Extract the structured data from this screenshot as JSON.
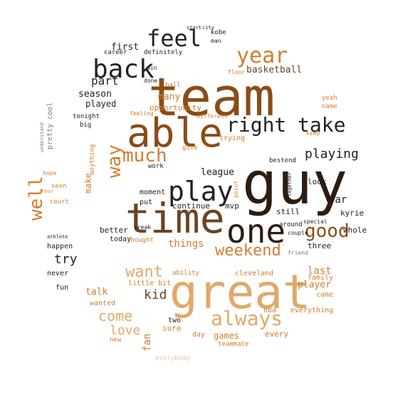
{
  "palette": {
    "dark": "#2d1c10",
    "brown": "#6b4424",
    "rust": "#8a4c17",
    "orange": "#d27d2d",
    "tan": "#e0a96a",
    "sand": "#ecc79e",
    "pale": "#f0d9bd",
    "ink": "#222222",
    "gray": "#7a7a7a"
  },
  "words": [
    {
      "text": "guy",
      "color": "dark"
    },
    {
      "text": "team",
      "color": "rust"
    },
    {
      "text": "great",
      "color": "tan"
    },
    {
      "text": "time",
      "color": "brown"
    },
    {
      "text": "able",
      "color": "rust"
    },
    {
      "text": "one",
      "color": "dark"
    },
    {
      "text": "play",
      "color": "ink"
    },
    {
      "text": "back",
      "color": "ink"
    },
    {
      "text": "feel",
      "color": "ink"
    },
    {
      "text": "year",
      "color": "orange"
    },
    {
      "text": "right",
      "color": "ink"
    },
    {
      "text": "take",
      "color": "ink"
    },
    {
      "text": "much",
      "color": "orange"
    },
    {
      "text": "way",
      "color": "orange"
    },
    {
      "text": "always",
      "color": "tan"
    },
    {
      "text": "good",
      "color": "rust"
    },
    {
      "text": "weekend",
      "color": "orange"
    },
    {
      "text": "want",
      "color": "tan"
    },
    {
      "text": "well",
      "color": "orange"
    },
    {
      "text": "playing",
      "color": "ink"
    },
    {
      "text": "come",
      "color": "tan"
    },
    {
      "text": "love",
      "color": "tan"
    },
    {
      "text": "kid",
      "color": "brown"
    },
    {
      "text": "try",
      "color": "ink"
    },
    {
      "text": "part",
      "color": "ink"
    },
    {
      "text": "first",
      "color": "ink"
    },
    {
      "text": "season",
      "color": "ink"
    },
    {
      "text": "played",
      "color": "ink"
    },
    {
      "text": "basketball",
      "color": "brown"
    },
    {
      "text": "many",
      "color": "orange"
    },
    {
      "text": "opportunity",
      "color": "orange"
    },
    {
      "text": "league",
      "color": "ink"
    },
    {
      "text": "things",
      "color": "orange"
    },
    {
      "text": "last",
      "color": "orange"
    },
    {
      "text": "player",
      "color": "orange"
    },
    {
      "text": "far",
      "color": "ink"
    },
    {
      "text": "look",
      "color": "ink"
    },
    {
      "text": "kyrie",
      "color": "ink"
    },
    {
      "text": "still",
      "color": "ink"
    },
    {
      "text": "whole",
      "color": "ink"
    },
    {
      "text": "three",
      "color": "ink"
    },
    {
      "text": "mvp",
      "color": "ink"
    },
    {
      "text": "continue",
      "color": "ink"
    },
    {
      "text": "moment",
      "color": "ink"
    },
    {
      "text": "put",
      "color": "ink"
    },
    {
      "text": "make",
      "color": "orange"
    },
    {
      "text": "better",
      "color": "ink"
    },
    {
      "text": "today",
      "color": "ink"
    },
    {
      "text": "happen",
      "color": "ink"
    },
    {
      "text": "never",
      "color": "ink"
    },
    {
      "text": "fun",
      "color": "ink"
    },
    {
      "text": "talk",
      "color": "orange"
    },
    {
      "text": "little bit",
      "color": "orange"
    },
    {
      "text": "wanted",
      "color": "orange"
    },
    {
      "text": "fan",
      "color": "orange"
    },
    {
      "text": "sure",
      "color": "orange"
    },
    {
      "text": "games",
      "color": "orange"
    },
    {
      "text": "every",
      "color": "orange"
    },
    {
      "text": "two",
      "color": "ink"
    },
    {
      "text": "day",
      "color": "orange"
    },
    {
      "text": "nba",
      "color": "orange"
    },
    {
      "text": "everything",
      "color": "orange"
    },
    {
      "text": "came",
      "color": "orange"
    },
    {
      "text": "family",
      "color": "orange"
    },
    {
      "text": "cleveland",
      "color": "orange"
    },
    {
      "text": "ability",
      "color": "orange"
    },
    {
      "text": "everybody",
      "color": "sand"
    },
    {
      "text": "teammate",
      "color": "orange"
    },
    {
      "text": "new",
      "color": "orange"
    },
    {
      "text": "definitely",
      "color": "ink"
    },
    {
      "text": "career",
      "color": "ink"
    },
    {
      "text": "kobe",
      "color": "ink"
    },
    {
      "text": "man",
      "color": "ink"
    },
    {
      "text": "win",
      "color": "ink"
    },
    {
      "text": "done",
      "color": "ink"
    },
    {
      "text": "tonight",
      "color": "ink"
    },
    {
      "text": "big",
      "color": "ink"
    },
    {
      "text": "pretty cool",
      "color": "gray"
    },
    {
      "text": "seen",
      "color": "orange"
    },
    {
      "text": "court",
      "color": "orange"
    },
    {
      "text": "athlete",
      "color": "ink"
    },
    {
      "text": "bestend",
      "color": "ink"
    },
    {
      "text": "yeah",
      "color": "orange"
    },
    {
      "text": "name",
      "color": "orange"
    },
    {
      "text": "special",
      "color": "ink"
    },
    {
      "text": "around",
      "color": "ink"
    },
    {
      "text": "couple",
      "color": "ink"
    },
    {
      "text": "ball",
      "color": "orange"
    },
    {
      "text": "trying",
      "color": "orange"
    },
    {
      "text": "give",
      "color": "orange"
    },
    {
      "text": "work",
      "color": "ink"
    },
    {
      "text": "thought",
      "color": "orange"
    },
    {
      "text": "feeling",
      "color": "orange"
    },
    {
      "text": "different",
      "color": "orange"
    },
    {
      "text": "floor",
      "color": "orange"
    },
    {
      "text": "anything",
      "color": "orange"
    },
    {
      "text": "hope",
      "color": "orange"
    },
    {
      "text": "break",
      "color": "ink"
    },
    {
      "text": "keep",
      "color": "orange"
    },
    {
      "text": "start",
      "color": "ink"
    },
    {
      "text": "city",
      "color": "ink"
    },
    {
      "text": "understand",
      "color": "gray"
    },
    {
      "text": "friend",
      "color": "gray"
    },
    {
      "text": "point",
      "color": "orange"
    },
    {
      "text": "four",
      "color": "orange"
    },
    {
      "text": "together",
      "color": "ink"
    }
  ]
}
